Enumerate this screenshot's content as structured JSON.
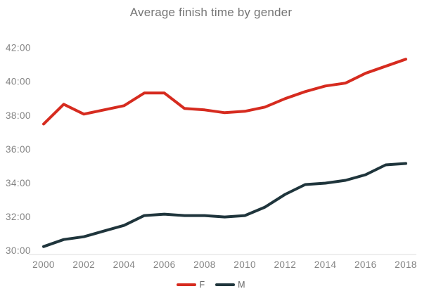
{
  "title": "Average finish time by gender",
  "chart_data": {
    "type": "line",
    "x": [
      2000,
      2001,
      2002,
      2003,
      2004,
      2005,
      2006,
      2007,
      2008,
      2009,
      2010,
      2011,
      2012,
      2013,
      2014,
      2015,
      2016,
      2017,
      2018
    ],
    "x_tick_labels": [
      "2000",
      "2002",
      "2004",
      "2006",
      "2008",
      "2010",
      "2012",
      "2014",
      "2016",
      "2018"
    ],
    "y_tick_labels": [
      "30:00",
      "32:00",
      "34:00",
      "36:00",
      "38:00",
      "40:00",
      "42:00"
    ],
    "y_axis_range": [
      "30:00",
      "42:00"
    ],
    "grid": "none",
    "legend_position": "bottom",
    "series": [
      {
        "name": "F",
        "color": "#d62b1f",
        "values": [
          "37:30",
          "38:40",
          "38:05",
          "38:20",
          "38:35",
          "39:20",
          "39:20",
          "38:25",
          "38:20",
          "38:10",
          "38:15",
          "38:30",
          "39:00",
          "39:25",
          "39:45",
          "39:55",
          "40:30",
          "40:55",
          "41:20"
        ]
      },
      {
        "name": "M",
        "color": "#1f353c",
        "values": [
          "30:15",
          "30:40",
          "30:50",
          "31:10",
          "31:30",
          "32:05",
          "32:10",
          "32:05",
          "32:05",
          "32:00",
          "32:05",
          "32:35",
          "33:20",
          "33:55",
          "34:00",
          "34:10",
          "34:30",
          "35:05",
          "35:10"
        ]
      }
    ],
    "axis_line_color": "#dcdcdc"
  }
}
